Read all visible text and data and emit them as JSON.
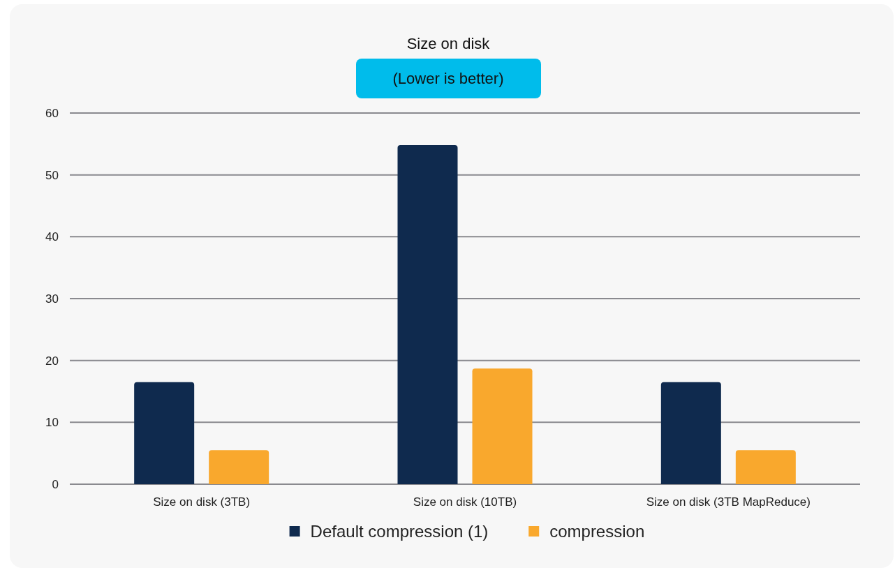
{
  "chart_data": {
    "type": "bar",
    "title": "Size on disk",
    "subtitle": "(Lower is better)",
    "categories": [
      "Size on disk (3TB)",
      "Size on disk (10TB)",
      "Size on disk (3TB MapReduce)"
    ],
    "series": [
      {
        "name": "Default compression (1)",
        "color": "#0f2a4e",
        "values": [
          16.5,
          54.8,
          16.5
        ]
      },
      {
        "name": "compression",
        "color": "#f9a82d",
        "values": [
          5.5,
          18.7,
          5.5
        ]
      }
    ],
    "ylim": [
      0,
      60
    ],
    "yticks": [
      0,
      10,
      20,
      30,
      40,
      50,
      60
    ],
    "grid": "y",
    "legend": "bottom"
  }
}
